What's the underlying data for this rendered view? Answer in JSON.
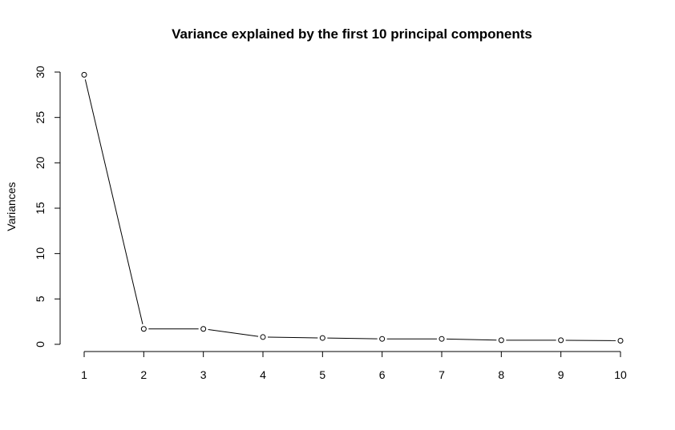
{
  "chart_data": {
    "type": "line",
    "title": "Variance explained by the first 10 principal components",
    "xlabel": "",
    "ylabel": "Variances",
    "x": [
      1,
      2,
      3,
      4,
      5,
      6,
      7,
      8,
      9,
      10
    ],
    "values": [
      29.7,
      1.7,
      1.7,
      0.8,
      0.7,
      0.6,
      0.6,
      0.45,
      0.45,
      0.4
    ],
    "xticks": [
      "1",
      "2",
      "3",
      "4",
      "5",
      "6",
      "7",
      "8",
      "9",
      "10"
    ],
    "yticks": [
      "0",
      "5",
      "10",
      "15",
      "20",
      "25",
      "30"
    ],
    "ytick_values": [
      0,
      5,
      10,
      15,
      20,
      25,
      30
    ],
    "xlim": [
      1,
      10
    ],
    "ylim": [
      0,
      30
    ],
    "grid": false,
    "marker": "open-circle"
  }
}
